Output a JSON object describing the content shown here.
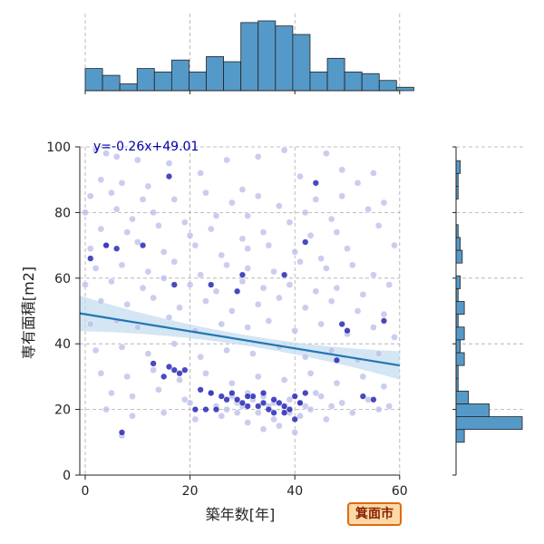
{
  "colors": {
    "bar_fill": "#5599c8",
    "scatter_light": "#b8bce8",
    "scatter_dark": "#1a1ab0",
    "regression_line": "#1f77b4",
    "confidence_band": "#c6dcef",
    "equation_text": "#0000aa",
    "grid": "#aaaaaa"
  },
  "badge": {
    "label": "箕面市"
  },
  "chart_data": {
    "type": "scatter",
    "xlabel": "築年数[年]",
    "ylabel": "専有面積[m2]",
    "xlim": [
      -1,
      60
    ],
    "ylim": [
      0,
      100
    ],
    "xticks": [
      0,
      20,
      40,
      60
    ],
    "yticks": [
      0,
      20,
      40,
      60,
      80,
      100
    ],
    "grid": true,
    "regression": {
      "slope": -0.26,
      "intercept": 49.01,
      "label": "y=-0.26x+49.01"
    },
    "points_light": [
      [
        2,
        99
      ],
      [
        4,
        98
      ],
      [
        6,
        97
      ],
      [
        10,
        96
      ],
      [
        16,
        95
      ],
      [
        27,
        96
      ],
      [
        33,
        97
      ],
      [
        38,
        99
      ],
      [
        46,
        98
      ],
      [
        49,
        93
      ],
      [
        55,
        92
      ],
      [
        3,
        90
      ],
      [
        7,
        89
      ],
      [
        12,
        88
      ],
      [
        22,
        92
      ],
      [
        30,
        87
      ],
      [
        41,
        91
      ],
      [
        52,
        89
      ],
      [
        1,
        85
      ],
      [
        5,
        86
      ],
      [
        11,
        84
      ],
      [
        17,
        84
      ],
      [
        23,
        86
      ],
      [
        28,
        83
      ],
      [
        33,
        85
      ],
      [
        44,
        84
      ],
      [
        49,
        85
      ],
      [
        57,
        83
      ],
      [
        0,
        80
      ],
      [
        6,
        81
      ],
      [
        9,
        78
      ],
      [
        13,
        80
      ],
      [
        19,
        77
      ],
      [
        25,
        79
      ],
      [
        31,
        79
      ],
      [
        37,
        82
      ],
      [
        42,
        80
      ],
      [
        47,
        78
      ],
      [
        54,
        81
      ],
      [
        3,
        75
      ],
      [
        8,
        74
      ],
      [
        14,
        76
      ],
      [
        20,
        73
      ],
      [
        24,
        75
      ],
      [
        30,
        72
      ],
      [
        34,
        74
      ],
      [
        39,
        77
      ],
      [
        43,
        73
      ],
      [
        48,
        74
      ],
      [
        56,
        76
      ],
      [
        1,
        69
      ],
      [
        4,
        70
      ],
      [
        10,
        71
      ],
      [
        15,
        68
      ],
      [
        21,
        70
      ],
      [
        26,
        67
      ],
      [
        31,
        69
      ],
      [
        35,
        70
      ],
      [
        40,
        68
      ],
      [
        45,
        66
      ],
      [
        50,
        69
      ],
      [
        59,
        70
      ],
      [
        2,
        63
      ],
      [
        7,
        64
      ],
      [
        12,
        62
      ],
      [
        17,
        65
      ],
      [
        22,
        61
      ],
      [
        27,
        64
      ],
      [
        31,
        63
      ],
      [
        36,
        62
      ],
      [
        41,
        65
      ],
      [
        46,
        63
      ],
      [
        51,
        64
      ],
      [
        55,
        61
      ],
      [
        0,
        58
      ],
      [
        5,
        59
      ],
      [
        11,
        57
      ],
      [
        15,
        60
      ],
      [
        20,
        58
      ],
      [
        25,
        56
      ],
      [
        30,
        59
      ],
      [
        34,
        57
      ],
      [
        39,
        58
      ],
      [
        44,
        56
      ],
      [
        48,
        57
      ],
      [
        53,
        55
      ],
      [
        58,
        58
      ],
      [
        3,
        53
      ],
      [
        8,
        52
      ],
      [
        13,
        54
      ],
      [
        18,
        51
      ],
      [
        23,
        53
      ],
      [
        28,
        50
      ],
      [
        33,
        52
      ],
      [
        37,
        54
      ],
      [
        42,
        51
      ],
      [
        47,
        53
      ],
      [
        52,
        50
      ],
      [
        57,
        49
      ],
      [
        1,
        46
      ],
      [
        6,
        47
      ],
      [
        10,
        45
      ],
      [
        16,
        48
      ],
      [
        21,
        44
      ],
      [
        26,
        46
      ],
      [
        31,
        45
      ],
      [
        35,
        47
      ],
      [
        40,
        44
      ],
      [
        45,
        46
      ],
      [
        50,
        43
      ],
      [
        55,
        45
      ],
      [
        59,
        42
      ],
      [
        2,
        38
      ],
      [
        7,
        39
      ],
      [
        12,
        37
      ],
      [
        17,
        40
      ],
      [
        22,
        36
      ],
      [
        27,
        38
      ],
      [
        32,
        37
      ],
      [
        37,
        39
      ],
      [
        42,
        36
      ],
      [
        47,
        38
      ],
      [
        52,
        35
      ],
      [
        56,
        37
      ],
      [
        3,
        31
      ],
      [
        8,
        30
      ],
      [
        13,
        32
      ],
      [
        18,
        29
      ],
      [
        23,
        31
      ],
      [
        28,
        28
      ],
      [
        33,
        30
      ],
      [
        38,
        29
      ],
      [
        43,
        31
      ],
      [
        48,
        28
      ],
      [
        53,
        30
      ],
      [
        57,
        27
      ],
      [
        5,
        25
      ],
      [
        9,
        24
      ],
      [
        14,
        26
      ],
      [
        19,
        23
      ],
      [
        24,
        25
      ],
      [
        29,
        22
      ],
      [
        34,
        24
      ],
      [
        39,
        23
      ],
      [
        44,
        25
      ],
      [
        49,
        22
      ],
      [
        54,
        23
      ],
      [
        58,
        21
      ],
      [
        4,
        20
      ],
      [
        9,
        18
      ],
      [
        15,
        19
      ],
      [
        21,
        17
      ],
      [
        26,
        18
      ],
      [
        31,
        16
      ],
      [
        36,
        17
      ],
      [
        41,
        18
      ],
      [
        46,
        17
      ],
      [
        51,
        19
      ],
      [
        56,
        20
      ],
      [
        7,
        12
      ],
      [
        20,
        22
      ],
      [
        25,
        21
      ],
      [
        27,
        20
      ],
      [
        33,
        19
      ],
      [
        35,
        21
      ],
      [
        37,
        15
      ],
      [
        38,
        20
      ],
      [
        40,
        13
      ],
      [
        42,
        21
      ],
      [
        30,
        21
      ],
      [
        29,
        19
      ],
      [
        32,
        23
      ],
      [
        36,
        22
      ],
      [
        39,
        19
      ],
      [
        41,
        22
      ],
      [
        43,
        20
      ],
      [
        34,
        14
      ],
      [
        31,
        25
      ],
      [
        28,
        24
      ],
      [
        45,
        24
      ],
      [
        47,
        21
      ]
    ],
    "points_dark": [
      [
        16,
        91
      ],
      [
        44,
        89
      ],
      [
        4,
        70
      ],
      [
        6,
        69
      ],
      [
        11,
        70
      ],
      [
        42,
        71
      ],
      [
        1,
        66
      ],
      [
        17,
        58
      ],
      [
        24,
        58
      ],
      [
        29,
        56
      ],
      [
        30,
        61
      ],
      [
        38,
        61
      ],
      [
        49,
        46
      ],
      [
        50,
        44
      ],
      [
        57,
        47
      ],
      [
        16,
        33
      ],
      [
        17,
        32
      ],
      [
        18,
        31
      ],
      [
        19,
        32
      ],
      [
        15,
        30
      ],
      [
        13,
        34
      ],
      [
        22,
        26
      ],
      [
        24,
        25
      ],
      [
        26,
        24
      ],
      [
        28,
        25
      ],
      [
        29,
        23
      ],
      [
        30,
        22
      ],
      [
        31,
        21
      ],
      [
        32,
        24
      ],
      [
        33,
        21
      ],
      [
        34,
        22
      ],
      [
        35,
        20
      ],
      [
        36,
        23
      ],
      [
        37,
        22
      ],
      [
        38,
        21
      ],
      [
        39,
        20
      ],
      [
        40,
        24
      ],
      [
        41,
        22
      ],
      [
        42,
        25
      ],
      [
        31,
        24
      ],
      [
        34,
        25
      ],
      [
        36,
        19
      ],
      [
        38,
        19
      ],
      [
        40,
        17
      ],
      [
        27,
        23
      ],
      [
        25,
        20
      ],
      [
        21,
        20
      ],
      [
        23,
        20
      ],
      [
        48,
        35
      ],
      [
        53,
        24
      ],
      [
        55,
        23
      ],
      [
        7,
        13
      ]
    ],
    "top_histogram": {
      "bin_start": 0,
      "bin_width": 3.3,
      "counts": [
        13,
        9,
        4,
        13,
        11,
        18,
        11,
        20,
        17,
        40,
        41,
        38,
        33,
        11,
        19,
        11,
        10,
        6,
        2
      ]
    },
    "right_histogram": {
      "bin_start": 10,
      "bin_width": 3.9,
      "counts": [
        4,
        32,
        16,
        6,
        1,
        1,
        4,
        2,
        4,
        1,
        4,
        1,
        2,
        0,
        3,
        2,
        1,
        0,
        0,
        1,
        1,
        2
      ]
    }
  }
}
